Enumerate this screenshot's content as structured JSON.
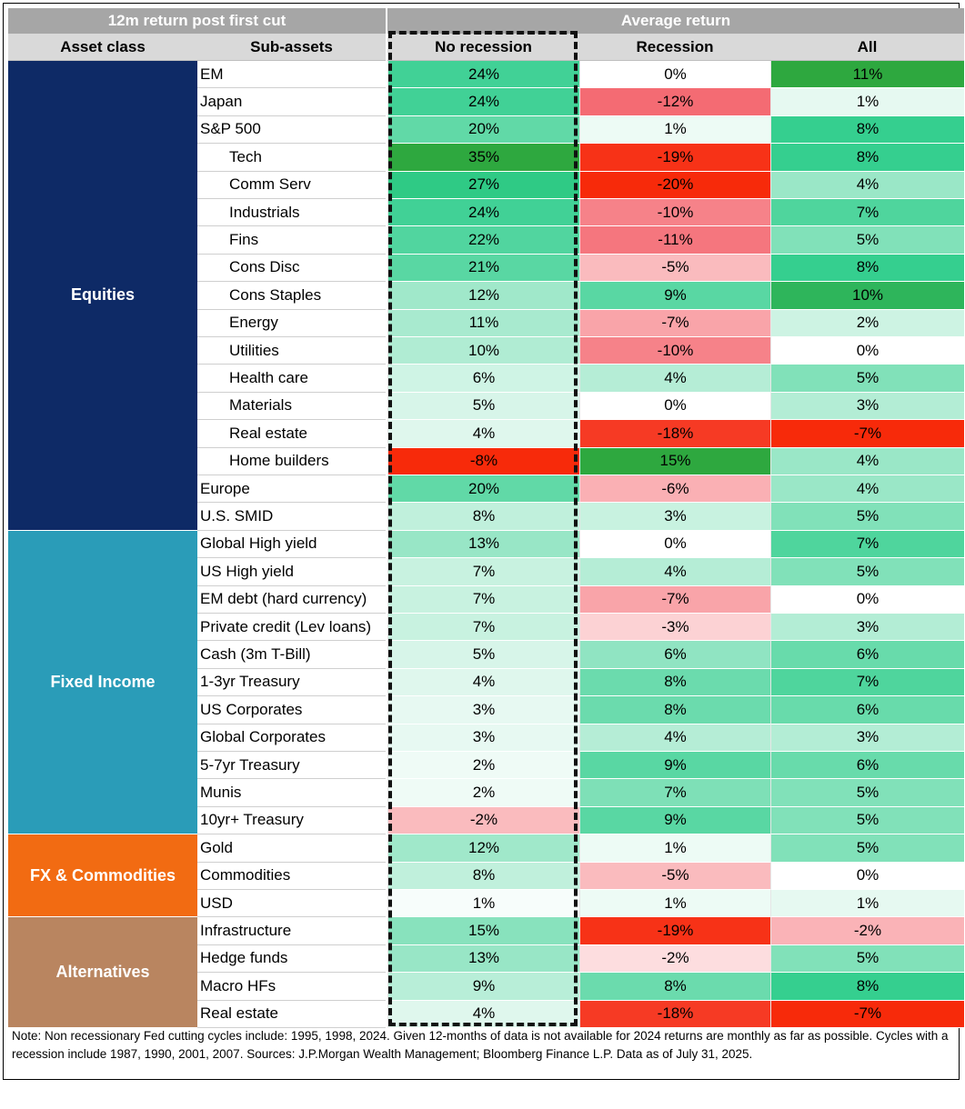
{
  "header": {
    "left_title": "12m return post first cut",
    "right_title": "Average return",
    "columns": [
      "Asset class",
      "Sub-assets",
      "No recession",
      "Recession",
      "All"
    ]
  },
  "colors": {
    "equities": "#0e2a66",
    "fixed_income": "#2a9cb8",
    "fx_commodities": "#f26b12",
    "alternatives": "#b98560",
    "header_dark": "#a6a6a6",
    "header_light": "#d9d9d9"
  },
  "groups": [
    {
      "name": "Equities",
      "color_key": "equities",
      "start": 0,
      "count": 17
    },
    {
      "name": "Fixed Income",
      "color_key": "fixed_income",
      "start": 17,
      "count": 11
    },
    {
      "name": "FX & Commodities",
      "color_key": "fx_commodities",
      "start": 28,
      "count": 3
    },
    {
      "name": "Alternatives",
      "color_key": "alternatives",
      "start": 31,
      "count": 4
    }
  ],
  "chart_data": {
    "type": "table",
    "title": "12m return post first cut — Average return",
    "columns": [
      "No recession",
      "Recession",
      "All"
    ],
    "rows": [
      {
        "group": "Equities",
        "sub": "EM",
        "indent": false,
        "no_recession": 24,
        "recession": 0,
        "all": 11
      },
      {
        "group": "Equities",
        "sub": "Japan",
        "indent": false,
        "no_recession": 24,
        "recession": -12,
        "all": 1
      },
      {
        "group": "Equities",
        "sub": "S&P 500",
        "indent": false,
        "no_recession": 20,
        "recession": 1,
        "all": 8
      },
      {
        "group": "Equities",
        "sub": "Tech",
        "indent": true,
        "no_recession": 35,
        "recession": -19,
        "all": 8
      },
      {
        "group": "Equities",
        "sub": "Comm Serv",
        "indent": true,
        "no_recession": 27,
        "recession": -20,
        "all": 4
      },
      {
        "group": "Equities",
        "sub": "Industrials",
        "indent": true,
        "no_recession": 24,
        "recession": -10,
        "all": 7
      },
      {
        "group": "Equities",
        "sub": "Fins",
        "indent": true,
        "no_recession": 22,
        "recession": -11,
        "all": 5
      },
      {
        "group": "Equities",
        "sub": "Cons Disc",
        "indent": true,
        "no_recession": 21,
        "recession": -5,
        "all": 8
      },
      {
        "group": "Equities",
        "sub": "Cons Staples",
        "indent": true,
        "no_recession": 12,
        "recession": 9,
        "all": 10
      },
      {
        "group": "Equities",
        "sub": "Energy",
        "indent": true,
        "no_recession": 11,
        "recession": -7,
        "all": 2
      },
      {
        "group": "Equities",
        "sub": "Utilities",
        "indent": true,
        "no_recession": 10,
        "recession": -10,
        "all": 0
      },
      {
        "group": "Equities",
        "sub": "Health care",
        "indent": true,
        "no_recession": 6,
        "recession": 4,
        "all": 5
      },
      {
        "group": "Equities",
        "sub": "Materials",
        "indent": true,
        "no_recession": 5,
        "recession": 0,
        "all": 3
      },
      {
        "group": "Equities",
        "sub": "Real estate",
        "indent": true,
        "no_recession": 4,
        "recession": -18,
        "all": -7
      },
      {
        "group": "Equities",
        "sub": "Home builders",
        "indent": true,
        "no_recession": -8,
        "recession": 15,
        "all": 4
      },
      {
        "group": "Equities",
        "sub": "Europe",
        "indent": false,
        "no_recession": 20,
        "recession": -6,
        "all": 4
      },
      {
        "group": "Equities",
        "sub": "U.S. SMID",
        "indent": false,
        "no_recession": 8,
        "recession": 3,
        "all": 5
      },
      {
        "group": "Fixed Income",
        "sub": "Global High yield",
        "indent": false,
        "no_recession": 13,
        "recession": 0,
        "all": 7
      },
      {
        "group": "Fixed Income",
        "sub": "US High yield",
        "indent": false,
        "no_recession": 7,
        "recession": 4,
        "all": 5
      },
      {
        "group": "Fixed Income",
        "sub": "EM debt (hard currency)",
        "indent": false,
        "no_recession": 7,
        "recession": -7,
        "all": 0
      },
      {
        "group": "Fixed Income",
        "sub": "Private credit (Lev loans)",
        "indent": false,
        "no_recession": 7,
        "recession": -3,
        "all": 3
      },
      {
        "group": "Fixed Income",
        "sub": "Cash (3m T-Bill)",
        "indent": false,
        "no_recession": 5,
        "recession": 6,
        "all": 6
      },
      {
        "group": "Fixed Income",
        "sub": "1-3yr Treasury",
        "indent": false,
        "no_recession": 4,
        "recession": 8,
        "all": 7
      },
      {
        "group": "Fixed Income",
        "sub": "US Corporates",
        "indent": false,
        "no_recession": 3,
        "recession": 8,
        "all": 6
      },
      {
        "group": "Fixed Income",
        "sub": "Global Corporates",
        "indent": false,
        "no_recession": 3,
        "recession": 4,
        "all": 3
      },
      {
        "group": "Fixed Income",
        "sub": "5-7yr Treasury",
        "indent": false,
        "no_recession": 2,
        "recession": 9,
        "all": 6
      },
      {
        "group": "Fixed Income",
        "sub": "Munis",
        "indent": false,
        "no_recession": 2,
        "recession": 7,
        "all": 5
      },
      {
        "group": "Fixed Income",
        "sub": "10yr+ Treasury",
        "indent": false,
        "no_recession": -2,
        "recession": 9,
        "all": 5
      },
      {
        "group": "FX & Commodities",
        "sub": "Gold",
        "indent": false,
        "no_recession": 12,
        "recession": 1,
        "all": 5
      },
      {
        "group": "FX & Commodities",
        "sub": "Commodities",
        "indent": false,
        "no_recession": 8,
        "recession": -5,
        "all": 0
      },
      {
        "group": "FX & Commodities",
        "sub": "USD",
        "indent": false,
        "no_recession": 1,
        "recession": 1,
        "all": 1
      },
      {
        "group": "Alternatives",
        "sub": "Infrastructure",
        "indent": false,
        "no_recession": 15,
        "recession": -19,
        "all": -2
      },
      {
        "group": "Alternatives",
        "sub": "Hedge funds",
        "indent": false,
        "no_recession": 13,
        "recession": -2,
        "all": 5
      },
      {
        "group": "Alternatives",
        "sub": "Macro HFs",
        "indent": false,
        "no_recession": 9,
        "recession": 8,
        "all": 8
      },
      {
        "group": "Alternatives",
        "sub": "Real estate",
        "indent": false,
        "no_recession": 4,
        "recession": -18,
        "all": -7
      }
    ]
  },
  "note": "Note: Non recessionary Fed cutting cycles include: 1995, 1998,  2024. Given 12-months of data is not available for 2024 returns are monthly as far as possible. Cycles with a recession include 1987, 1990, 2001, 2007. Sources: J.P.Morgan Wealth Management; Bloomberg Finance L.P. Data as of July 31, 2025."
}
